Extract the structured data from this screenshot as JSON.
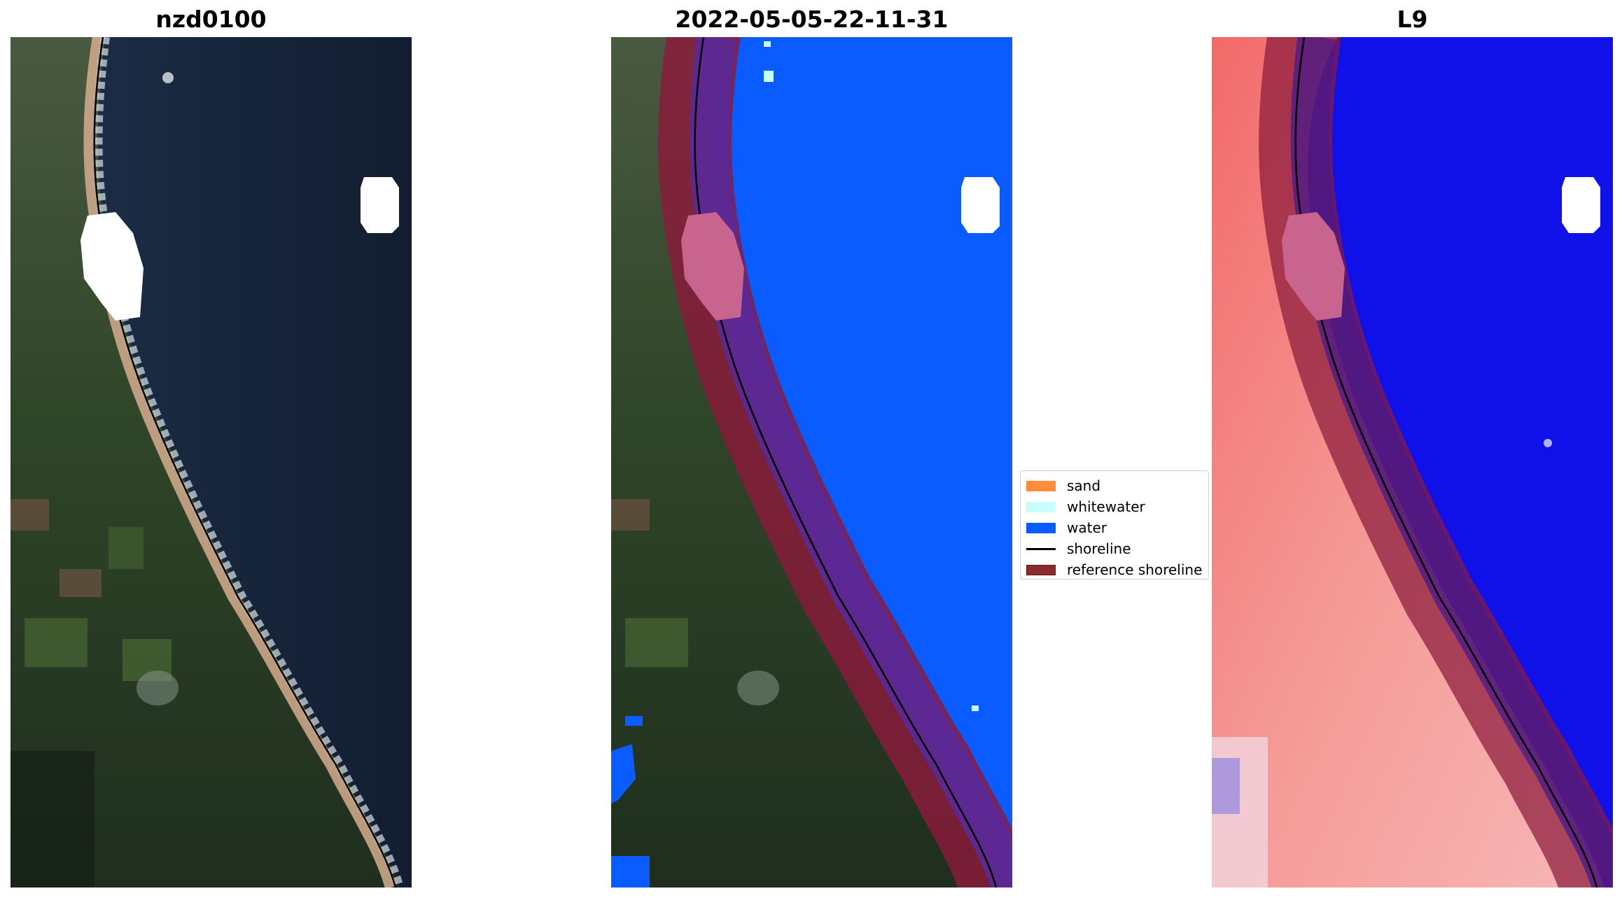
{
  "panels": [
    {
      "title": "nzd0100"
    },
    {
      "title": "2022-05-05-22-11-31"
    },
    {
      "title": "L9"
    }
  ],
  "legend": {
    "items": [
      {
        "label": "sand",
        "color": "#ff8c3a",
        "kind": "patch"
      },
      {
        "label": "whitewater",
        "color": "#c8fffe",
        "kind": "patch"
      },
      {
        "label": "water",
        "color": "#0b5cff",
        "kind": "patch"
      },
      {
        "label": "shoreline",
        "color": "#000000",
        "kind": "line"
      },
      {
        "label": "reference shoreline",
        "color": "#8b2b2b",
        "kind": "patch"
      }
    ]
  },
  "colors": {
    "water_rgb": "#16233a",
    "land_rgb": "#344a2c",
    "beach_sand": "#d9ad8c",
    "classified_water": "#0b5cff",
    "index_land": "#f58f8f",
    "index_water": "#1010e8",
    "reference_buffer": "#8b1a3c",
    "cloud_mask": "#ffffff"
  }
}
